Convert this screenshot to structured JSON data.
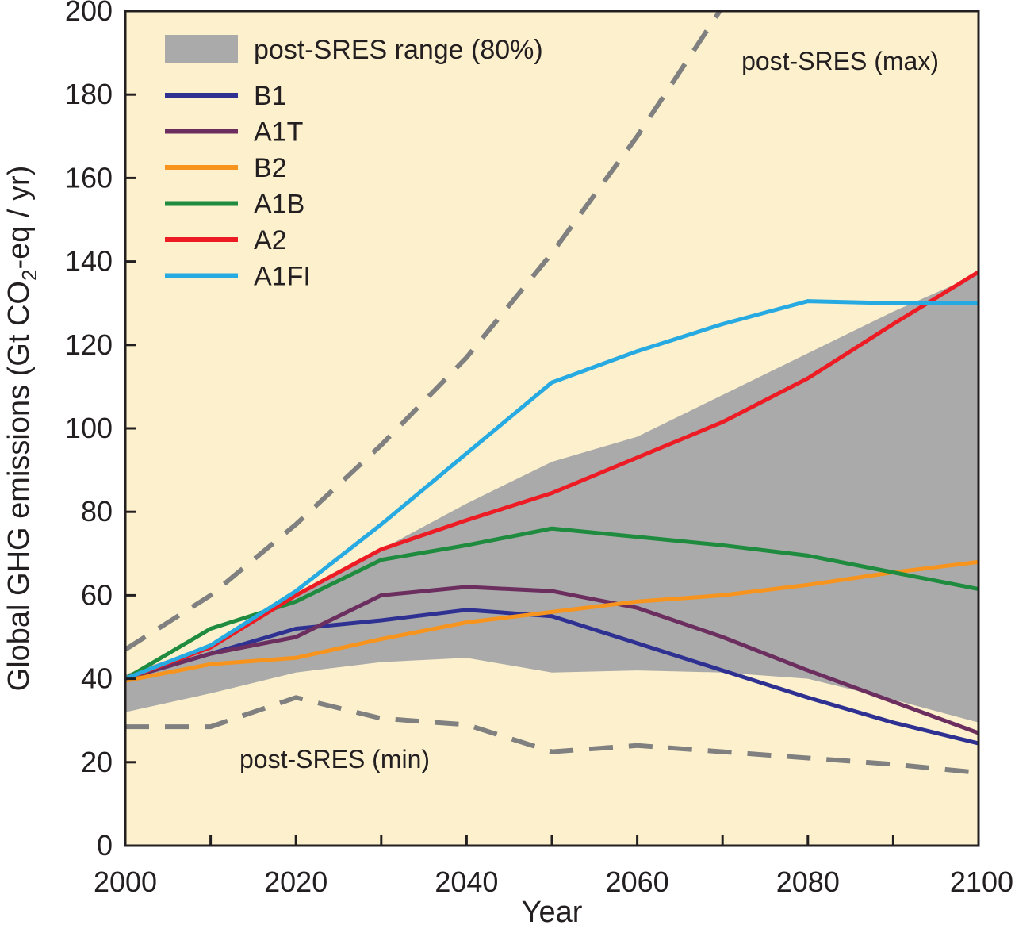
{
  "colors": {
    "plot_background": "#fdf1cd",
    "range_fill": "#aaaaaa",
    "dashed": "#808080",
    "axis": "#231f20"
  },
  "chart_data": {
    "type": "line",
    "xlabel": "Year",
    "ylabel": {
      "prefix": "Global GHG emissions (Gt CO",
      "subscript": "2",
      "suffix": "-eq / yr)"
    },
    "xlim": [
      2000,
      2100
    ],
    "ylim": [
      0,
      200
    ],
    "xticks": [
      2000,
      2020,
      2040,
      2060,
      2080,
      2100
    ],
    "xticks_minor": [
      2010,
      2030,
      2050,
      2070,
      2090
    ],
    "yticks": [
      0,
      20,
      40,
      60,
      80,
      100,
      120,
      140,
      160,
      180,
      200
    ],
    "grid": false,
    "legend_position": "top-left",
    "band": {
      "name": "post-SRES range (80%)",
      "x": [
        2000,
        2010,
        2020,
        2030,
        2040,
        2050,
        2060,
        2070,
        2080,
        2090,
        2100
      ],
      "upper": [
        41,
        48,
        60,
        71,
        82,
        92,
        98,
        108,
        118,
        128,
        137
      ],
      "lower": [
        32,
        36.5,
        41.5,
        44,
        45,
        41.5,
        42,
        41.5,
        40,
        35,
        29.5
      ]
    },
    "dashed_lines": [
      {
        "name": "post-SRES (max)",
        "x": [
          2000,
          2010,
          2020,
          2030,
          2040,
          2050,
          2060,
          2070
        ],
        "values": [
          47,
          60,
          77,
          96,
          117,
          142,
          170,
          201
        ]
      },
      {
        "name": "post-SRES (min)",
        "x": [
          2000,
          2010,
          2020,
          2030,
          2040,
          2050,
          2060,
          2070,
          2080,
          2090,
          2100
        ],
        "values": [
          28.5,
          28.5,
          35.5,
          30.5,
          29,
          22.5,
          24,
          22.5,
          21,
          19.5,
          17.5
        ]
      }
    ],
    "x": [
      2000,
      2010,
      2020,
      2030,
      2040,
      2050,
      2060,
      2070,
      2080,
      2090,
      2100
    ],
    "series": [
      {
        "name": "B1",
        "color": "#2e3192",
        "values": [
          40,
          46,
          52,
          54,
          56.5,
          55,
          48.5,
          42,
          35.5,
          29.5,
          24.5
        ]
      },
      {
        "name": "A1T",
        "color": "#6b2e5f",
        "values": [
          40,
          46,
          50,
          60,
          62,
          61,
          57,
          50,
          42,
          34.5,
          27
        ]
      },
      {
        "name": "B2",
        "color": "#f7941d",
        "values": [
          39.5,
          43.5,
          45,
          49.5,
          53.5,
          56,
          58.5,
          60,
          62.5,
          65.5,
          68
        ]
      },
      {
        "name": "A1B",
        "color": "#1e8b3e",
        "values": [
          40,
          52,
          58.5,
          68.5,
          72,
          76,
          74,
          72,
          69.5,
          65.5,
          61.5
        ]
      },
      {
        "name": "A2",
        "color": "#ed1c24",
        "values": [
          40,
          47.5,
          60,
          71,
          78,
          84.5,
          93,
          101.5,
          112,
          125,
          137.5
        ]
      },
      {
        "name": "A1FI",
        "color": "#27aae1",
        "values": [
          40,
          48,
          61,
          77,
          94,
          111,
          118.5,
          125,
          130.5,
          130,
          130
        ]
      }
    ]
  }
}
